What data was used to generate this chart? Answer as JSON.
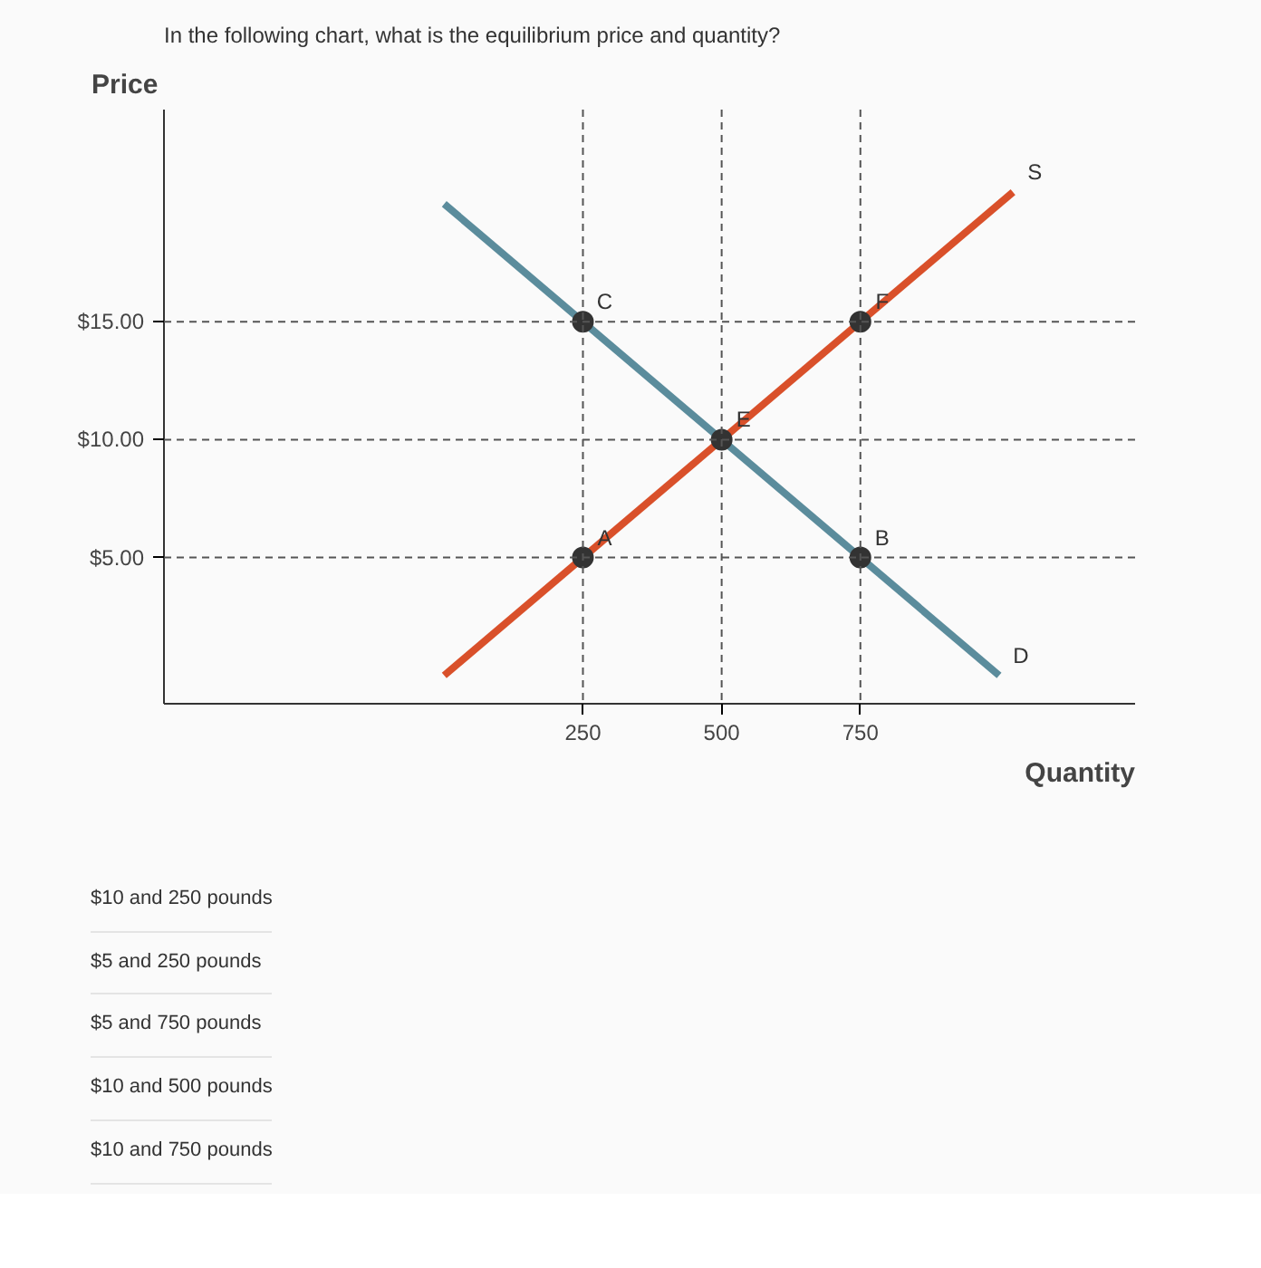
{
  "chart_data": {
    "type": "line",
    "title": "In the following chart, what is the equilibrium price and quantity?",
    "xlabel": "Quantity",
    "ylabel": "Price",
    "xlim": [
      -505,
      1245
    ],
    "ylim": [
      -1.2,
      24
    ],
    "xticks": [
      250,
      500,
      750
    ],
    "yticks": [
      {
        "value": 5,
        "label": "$5.00"
      },
      {
        "value": 10,
        "label": "$10.00"
      },
      {
        "value": 15,
        "label": "$15.00"
      }
    ],
    "grid": false,
    "series": [
      {
        "color": "#5b8c9c",
        "x": [
          0,
          1000
        ],
        "values": [
          20,
          0
        ]
      },
      {
        "color": "#d9502a",
        "x": [
          0,
          1025
        ],
        "values": [
          0,
          20.5
        ]
      },
      {
        "type": "scatter",
        "color": "#333333",
        "marker": "circle",
        "x": [
          250,
          250,
          500,
          750,
          750
        ],
        "values": [
          15,
          5,
          10,
          15,
          5
        ]
      }
    ],
    "ref_lines": [
      {
        "axis": "y",
        "value": 5,
        "color": "#555555",
        "line_style": "dashed"
      },
      {
        "axis": "y",
        "value": 10,
        "color": "#555555",
        "line_style": "dashed"
      },
      {
        "axis": "y",
        "value": 15,
        "color": "#555555",
        "line_style": "dashed"
      },
      {
        "axis": "x",
        "value": 250,
        "color": "#555555",
        "line_style": "dashed"
      },
      {
        "axis": "x",
        "value": 500,
        "color": "#555555",
        "line_style": "dashed"
      },
      {
        "axis": "x",
        "value": 750,
        "color": "#555555",
        "line_style": "dashed"
      }
    ],
    "annotations": [
      {
        "text": "C",
        "x": 250,
        "y": 15
      },
      {
        "text": "A",
        "x": 250,
        "y": 5
      },
      {
        "text": "E",
        "x": 500,
        "y": 10
      },
      {
        "text": "F",
        "x": 750,
        "y": 15
      },
      {
        "text": "B",
        "x": 750,
        "y": 5
      },
      {
        "text": "S",
        "x": 1025,
        "y": 20.5
      },
      {
        "text": "D",
        "x": 1000,
        "y": 0
      },
      "$10 and 250 pounds",
      "$5 and 250 pounds",
      "$5 and 750 pounds",
      "$10 and 500 pounds",
      "$10 and 750 pounds"
    ]
  }
}
